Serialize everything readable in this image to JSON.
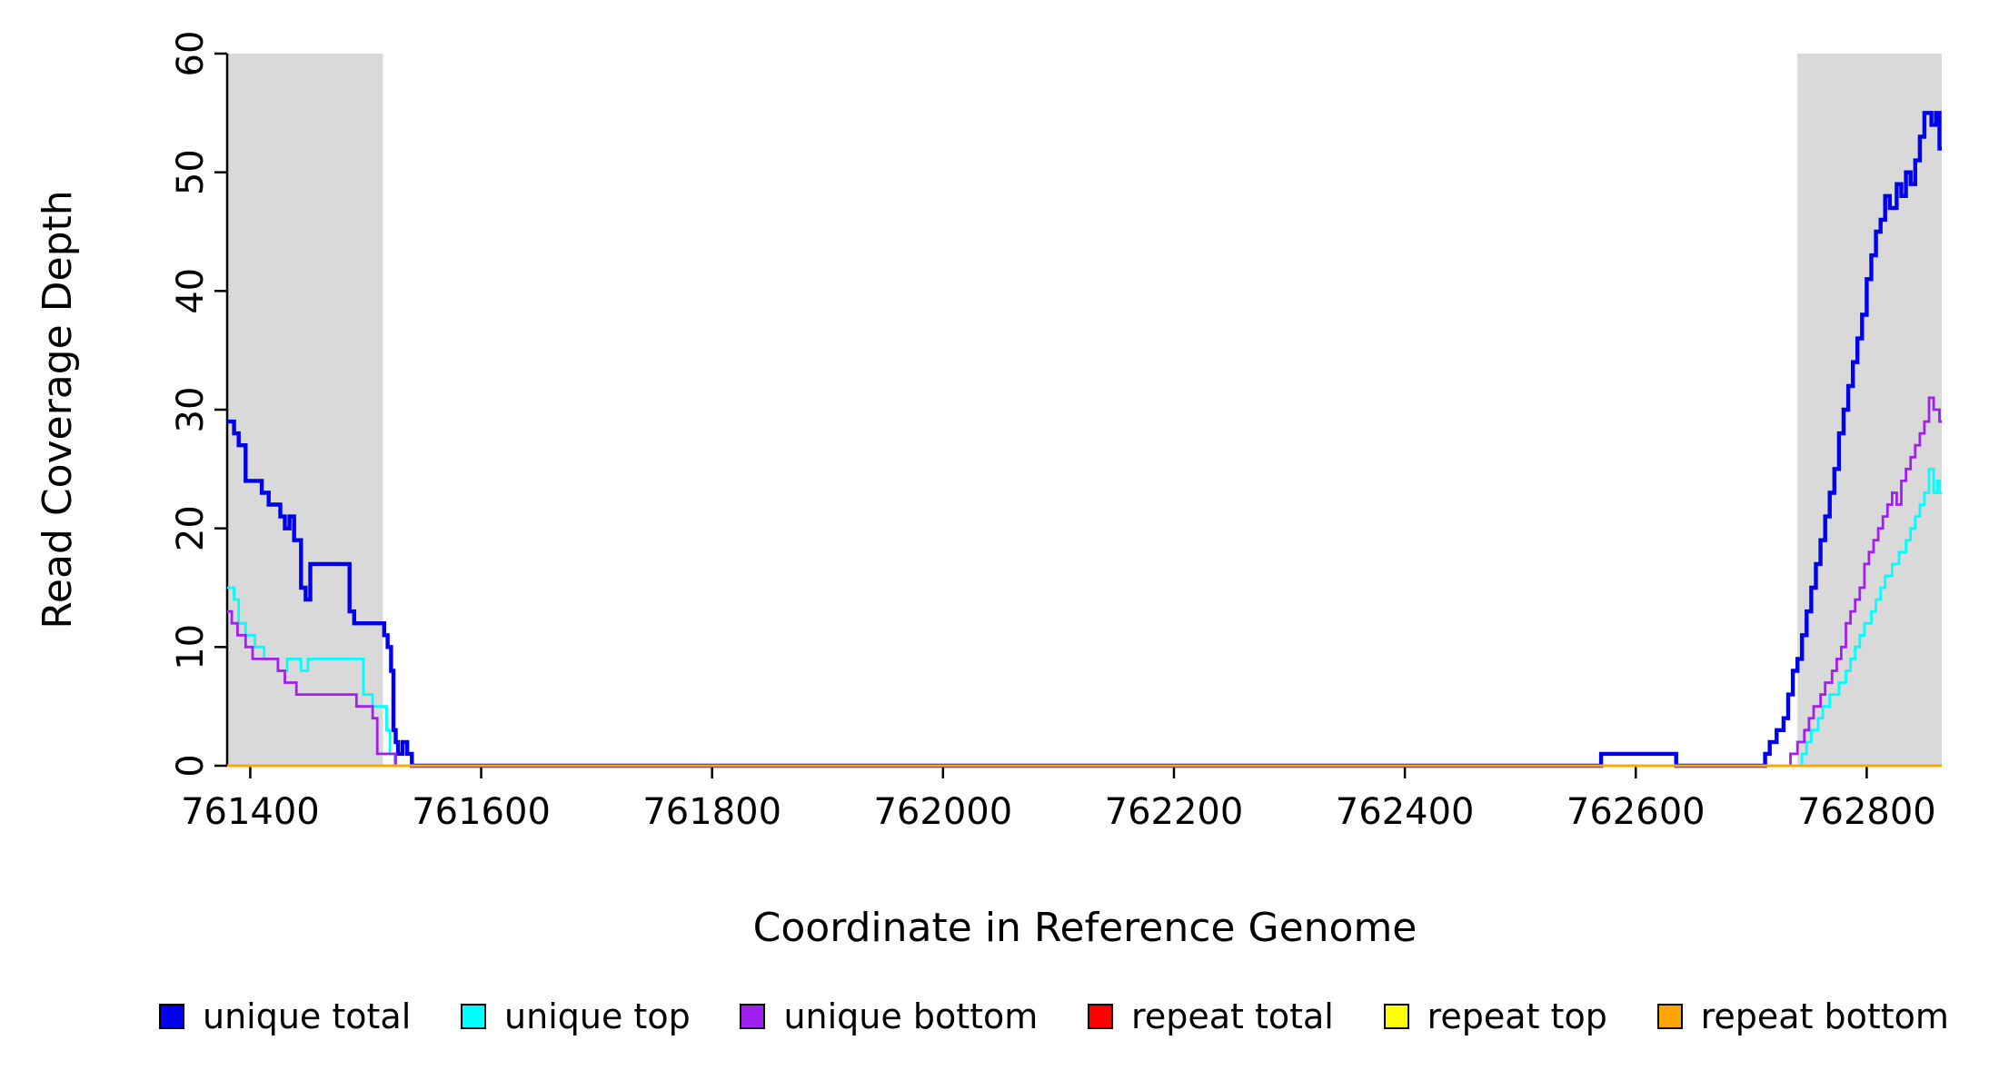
{
  "chart_data": {
    "type": "line",
    "subtype": "step",
    "title": "",
    "xlabel": "Coordinate in Reference Genome",
    "ylabel": "Read Coverage Depth",
    "xlim": [
      761380,
      762865
    ],
    "ylim": [
      0,
      60
    ],
    "x_ticks": [
      761400,
      761600,
      761800,
      762000,
      762200,
      762400,
      762600,
      762800
    ],
    "y_ticks": [
      0,
      10,
      20,
      30,
      40,
      50,
      60
    ],
    "grid": false,
    "legend_position": "bottom",
    "shaded_regions": [
      {
        "x0": 761380,
        "x1": 761515,
        "color": "#d9d9d9"
      },
      {
        "x0": 762740,
        "x1": 762865,
        "color": "#d9d9d9"
      }
    ],
    "series": [
      {
        "name": "unique total",
        "color": "#0000ee",
        "width": 4.4,
        "points": [
          [
            761380,
            29
          ],
          [
            761386,
            28
          ],
          [
            761390,
            27
          ],
          [
            761396,
            24
          ],
          [
            761404,
            24
          ],
          [
            761410,
            23
          ],
          [
            761416,
            22
          ],
          [
            761426,
            21
          ],
          [
            761430,
            20
          ],
          [
            761434,
            21
          ],
          [
            761438,
            19
          ],
          [
            761444,
            15
          ],
          [
            761448,
            14
          ],
          [
            761452,
            17
          ],
          [
            761486,
            13
          ],
          [
            761490,
            12
          ],
          [
            761512,
            12
          ],
          [
            761516,
            11
          ],
          [
            761519,
            10
          ],
          [
            761522,
            8
          ],
          [
            761524,
            3
          ],
          [
            761526,
            2
          ],
          [
            761528,
            1
          ],
          [
            761532,
            2
          ],
          [
            761536,
            1
          ],
          [
            761540,
            0
          ],
          [
            762570,
            1
          ],
          [
            762635,
            0
          ],
          [
            762712,
            1
          ],
          [
            762716,
            2
          ],
          [
            762722,
            3
          ],
          [
            762728,
            4
          ],
          [
            762732,
            6
          ],
          [
            762736,
            8
          ],
          [
            762740,
            9
          ],
          [
            762744,
            11
          ],
          [
            762748,
            13
          ],
          [
            762752,
            15
          ],
          [
            762756,
            17
          ],
          [
            762760,
            19
          ],
          [
            762764,
            21
          ],
          [
            762768,
            23
          ],
          [
            762772,
            25
          ],
          [
            762776,
            28
          ],
          [
            762780,
            30
          ],
          [
            762784,
            32
          ],
          [
            762788,
            34
          ],
          [
            762792,
            36
          ],
          [
            762796,
            38
          ],
          [
            762800,
            41
          ],
          [
            762804,
            43
          ],
          [
            762808,
            45
          ],
          [
            762812,
            46
          ],
          [
            762816,
            48
          ],
          [
            762820,
            47
          ],
          [
            762826,
            49
          ],
          [
            762830,
            48
          ],
          [
            762834,
            50
          ],
          [
            762838,
            49
          ],
          [
            762842,
            51
          ],
          [
            762846,
            53
          ],
          [
            762850,
            55
          ],
          [
            762856,
            54
          ],
          [
            762860,
            55
          ],
          [
            762863,
            52
          ]
        ]
      },
      {
        "name": "unique top",
        "color": "#00ffff",
        "width": 2.8,
        "points": [
          [
            761380,
            15
          ],
          [
            761386,
            14
          ],
          [
            761390,
            12
          ],
          [
            761396,
            11
          ],
          [
            761404,
            10
          ],
          [
            761412,
            9
          ],
          [
            761424,
            8
          ],
          [
            761432,
            9
          ],
          [
            761444,
            8
          ],
          [
            761450,
            9
          ],
          [
            761492,
            9
          ],
          [
            761498,
            6
          ],
          [
            761506,
            5
          ],
          [
            761514,
            5
          ],
          [
            761518,
            3
          ],
          [
            761521,
            1
          ],
          [
            761525,
            0
          ],
          [
            762744,
            1
          ],
          [
            762748,
            2
          ],
          [
            762752,
            3
          ],
          [
            762758,
            4
          ],
          [
            762762,
            5
          ],
          [
            762768,
            6
          ],
          [
            762776,
            7
          ],
          [
            762782,
            8
          ],
          [
            762786,
            9
          ],
          [
            762790,
            10
          ],
          [
            762794,
            11
          ],
          [
            762798,
            12
          ],
          [
            762804,
            13
          ],
          [
            762808,
            14
          ],
          [
            762812,
            15
          ],
          [
            762816,
            16
          ],
          [
            762822,
            17
          ],
          [
            762828,
            18
          ],
          [
            762834,
            19
          ],
          [
            762838,
            20
          ],
          [
            762842,
            21
          ],
          [
            762846,
            22
          ],
          [
            762850,
            23
          ],
          [
            762854,
            25
          ],
          [
            762858,
            23
          ],
          [
            762861,
            24
          ],
          [
            762863,
            23
          ]
        ]
      },
      {
        "name": "unique bottom",
        "color": "#a020f0",
        "width": 2.8,
        "points": [
          [
            761380,
            13
          ],
          [
            761384,
            12
          ],
          [
            761389,
            11
          ],
          [
            761396,
            10
          ],
          [
            761402,
            9
          ],
          [
            761418,
            9
          ],
          [
            761424,
            8
          ],
          [
            761430,
            7
          ],
          [
            761440,
            6
          ],
          [
            761486,
            6
          ],
          [
            761492,
            5
          ],
          [
            761500,
            5
          ],
          [
            761506,
            4
          ],
          [
            761510,
            1
          ],
          [
            761522,
            1
          ],
          [
            761526,
            0
          ],
          [
            762734,
            1
          ],
          [
            762740,
            2
          ],
          [
            762746,
            3
          ],
          [
            762750,
            4
          ],
          [
            762754,
            5
          ],
          [
            762760,
            6
          ],
          [
            762764,
            7
          ],
          [
            762770,
            8
          ],
          [
            762774,
            9
          ],
          [
            762778,
            10
          ],
          [
            762782,
            12
          ],
          [
            762786,
            13
          ],
          [
            762790,
            14
          ],
          [
            762794,
            15
          ],
          [
            762798,
            17
          ],
          [
            762802,
            18
          ],
          [
            762806,
            19
          ],
          [
            762810,
            20
          ],
          [
            762814,
            21
          ],
          [
            762818,
            22
          ],
          [
            762822,
            23
          ],
          [
            762826,
            22
          ],
          [
            762830,
            24
          ],
          [
            762834,
            25
          ],
          [
            762838,
            26
          ],
          [
            762842,
            27
          ],
          [
            762846,
            28
          ],
          [
            762850,
            29
          ],
          [
            762854,
            31
          ],
          [
            762858,
            30
          ],
          [
            762863,
            29
          ]
        ]
      },
      {
        "name": "repeat total",
        "color": "#ff0000",
        "width": 2.8,
        "points": [
          [
            761380,
            0
          ],
          [
            762863,
            0
          ]
        ]
      },
      {
        "name": "repeat top",
        "color": "#ffff00",
        "width": 2.8,
        "points": [
          [
            761380,
            0
          ],
          [
            762863,
            0
          ]
        ]
      },
      {
        "name": "repeat bottom",
        "color": "#ffa500",
        "width": 2.8,
        "points": [
          [
            761380,
            0
          ],
          [
            762863,
            0
          ]
        ]
      }
    ]
  }
}
